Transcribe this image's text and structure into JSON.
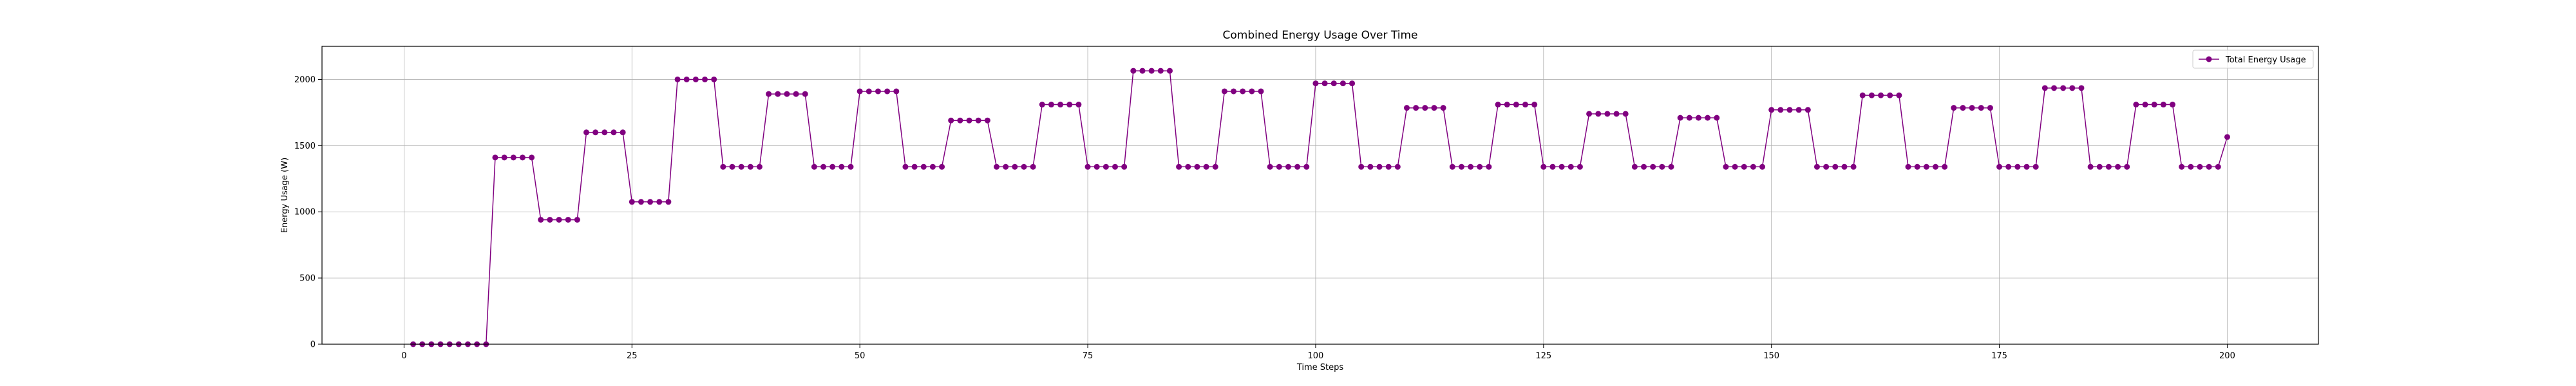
{
  "chart_data": {
    "type": "line",
    "title": "Combined Energy Usage Over Time",
    "xlabel": "Time Steps",
    "ylabel": "Energy Usage (W)",
    "xlim": [
      -9,
      210
    ],
    "ylim": [
      0,
      2250
    ],
    "xticks": [
      0,
      25,
      50,
      75,
      100,
      125,
      150,
      175,
      200
    ],
    "yticks": [
      0,
      500,
      1000,
      1500,
      2000
    ],
    "grid": true,
    "legend_position": "top-right",
    "series": [
      {
        "name": "Total Energy Usage",
        "color": "#800080",
        "marker": "circle",
        "x": [
          1,
          2,
          3,
          4,
          5,
          6,
          7,
          8,
          9,
          10,
          11,
          12,
          13,
          14,
          15,
          16,
          17,
          18,
          19,
          20,
          21,
          22,
          23,
          24,
          25,
          26,
          27,
          28,
          29,
          30,
          31,
          32,
          33,
          34,
          35,
          36,
          37,
          38,
          39,
          40,
          41,
          42,
          43,
          44,
          45,
          46,
          47,
          48,
          49,
          50,
          51,
          52,
          53,
          54,
          55,
          56,
          57,
          58,
          59,
          60,
          61,
          62,
          63,
          64,
          65,
          66,
          67,
          68,
          69,
          70,
          71,
          72,
          73,
          74,
          75,
          76,
          77,
          78,
          79,
          80,
          81,
          82,
          83,
          84,
          85,
          86,
          87,
          88,
          89,
          90,
          91,
          92,
          93,
          94,
          95,
          96,
          97,
          98,
          99,
          100,
          101,
          102,
          103,
          104,
          105,
          106,
          107,
          108,
          109,
          110,
          111,
          112,
          113,
          114,
          115,
          116,
          117,
          118,
          119,
          120,
          121,
          122,
          123,
          124,
          125,
          126,
          127,
          128,
          129,
          130,
          131,
          132,
          133,
          134,
          135,
          136,
          137,
          138,
          139,
          140,
          141,
          142,
          143,
          144,
          145,
          146,
          147,
          148,
          149,
          150,
          151,
          152,
          153,
          154,
          155,
          156,
          157,
          158,
          159,
          160,
          161,
          162,
          163,
          164,
          165,
          166,
          167,
          168,
          169,
          170,
          171,
          172,
          173,
          174,
          175,
          176,
          177,
          178,
          179,
          180,
          181,
          182,
          183,
          184,
          185,
          186,
          187,
          188,
          189,
          190,
          191,
          192,
          193,
          194,
          195,
          196,
          197,
          198,
          199,
          200
        ],
        "y": [
          0,
          0,
          0,
          0,
          0,
          0,
          0,
          0,
          0,
          1410,
          1410,
          1410,
          1410,
          1410,
          940,
          940,
          940,
          940,
          940,
          1600,
          1600,
          1600,
          1600,
          1600,
          1075,
          1075,
          1075,
          1075,
          1075,
          2000,
          2000,
          2000,
          2000,
          2000,
          1340,
          1340,
          1340,
          1340,
          1340,
          1890,
          1890,
          1890,
          1890,
          1890,
          1340,
          1340,
          1340,
          1340,
          1340,
          1910,
          1910,
          1910,
          1910,
          1910,
          1340,
          1340,
          1340,
          1340,
          1340,
          1690,
          1690,
          1690,
          1690,
          1690,
          1340,
          1340,
          1340,
          1340,
          1340,
          1810,
          1810,
          1810,
          1810,
          1810,
          1340,
          1340,
          1340,
          1340,
          1340,
          2065,
          2065,
          2065,
          2065,
          2065,
          1340,
          1340,
          1340,
          1340,
          1340,
          1910,
          1910,
          1910,
          1910,
          1910,
          1340,
          1340,
          1340,
          1340,
          1340,
          1970,
          1970,
          1970,
          1970,
          1970,
          1340,
          1340,
          1340,
          1340,
          1340,
          1785,
          1785,
          1785,
          1785,
          1785,
          1340,
          1340,
          1340,
          1340,
          1340,
          1810,
          1810,
          1810,
          1810,
          1810,
          1340,
          1340,
          1340,
          1340,
          1340,
          1740,
          1740,
          1740,
          1740,
          1740,
          1340,
          1340,
          1340,
          1340,
          1340,
          1710,
          1710,
          1710,
          1710,
          1710,
          1340,
          1340,
          1340,
          1340,
          1340,
          1770,
          1770,
          1770,
          1770,
          1770,
          1340,
          1340,
          1340,
          1340,
          1340,
          1880,
          1880,
          1880,
          1880,
          1880,
          1340,
          1340,
          1340,
          1340,
          1340,
          1785,
          1785,
          1785,
          1785,
          1785,
          1340,
          1340,
          1340,
          1340,
          1340,
          1935,
          1935,
          1935,
          1935,
          1935,
          1340,
          1340,
          1340,
          1340,
          1340,
          1810,
          1810,
          1810,
          1810,
          1810,
          1340,
          1340,
          1340,
          1340,
          1340,
          1565
        ]
      }
    ]
  }
}
